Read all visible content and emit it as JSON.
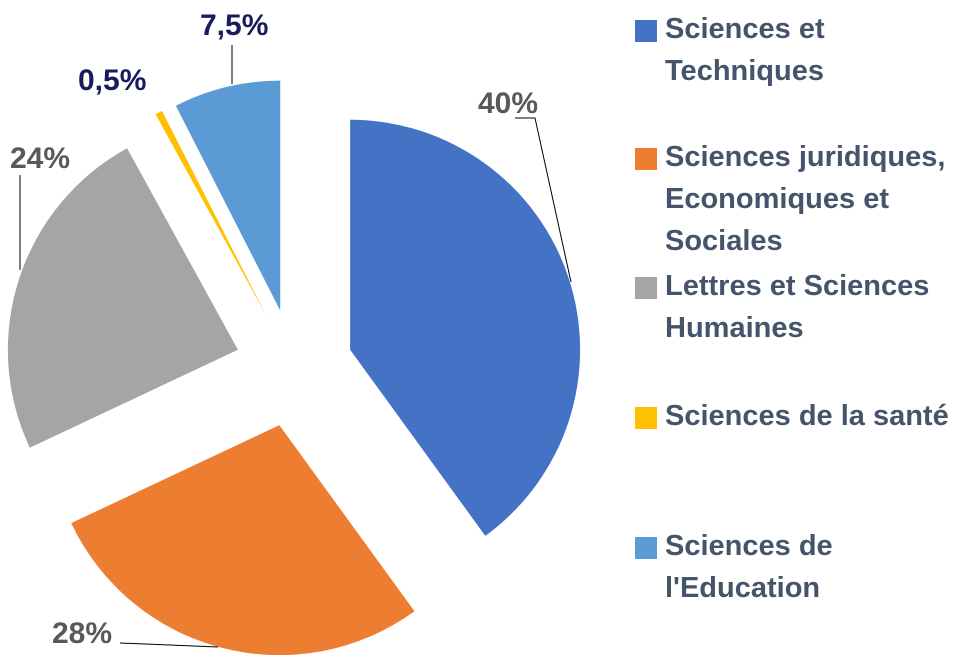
{
  "chart_data": {
    "type": "pie",
    "categories": [
      "Sciences et Techniques",
      "Sciences juridiques, Economiques et Sociales",
      "Lettres et Sciences Humaines",
      "Sciences de la santé",
      "Sciences de l'Education"
    ],
    "values": [
      40,
      28,
      24,
      0.5,
      7.5
    ],
    "value_labels": [
      "40%",
      "28%",
      "24%",
      "0,5%",
      "7,5%"
    ],
    "colors": [
      "#4472c4",
      "#ed7d31",
      "#a5a5a5",
      "#ffc000",
      "#5b9bd5"
    ],
    "legend": "right"
  }
}
